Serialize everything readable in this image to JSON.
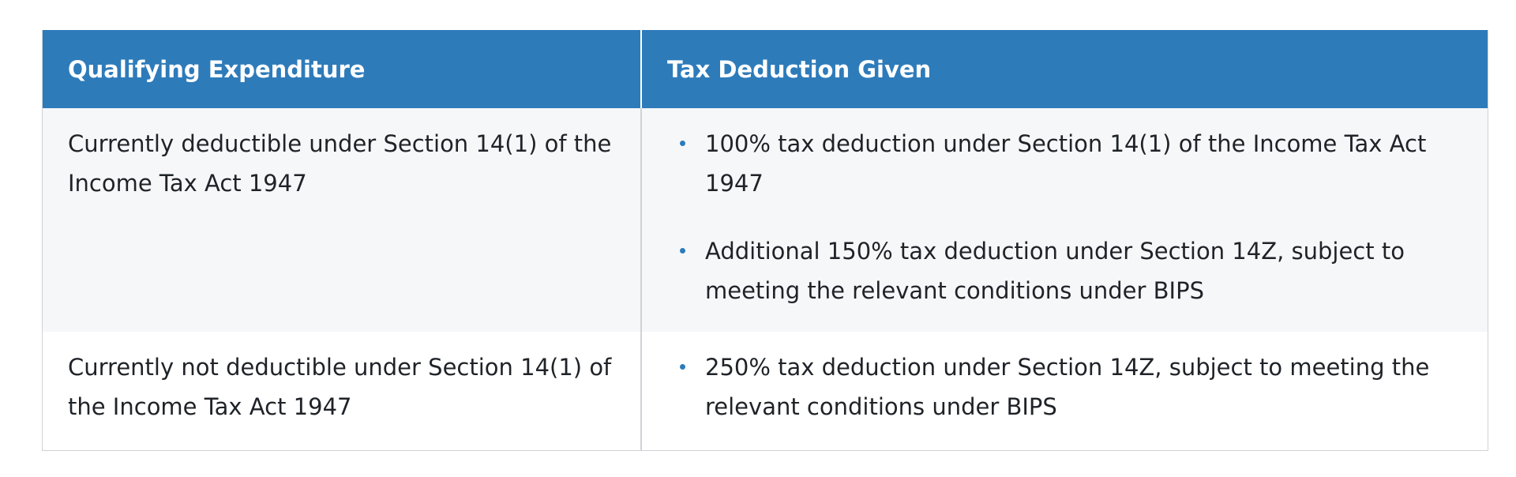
{
  "table": {
    "headers": [
      "Qualifying Expenditure",
      "Tax Deduction Given"
    ],
    "rows": [
      {
        "expenditure": "Currently deductible under Section 14(1) of the Income Tax Act 1947",
        "deductions": [
          "100% tax deduction under Section 14(1) of the Income Tax Act 1947",
          "Additional 150% tax deduction under Section 14Z, subject to meeting the relevant conditions under BIPS"
        ]
      },
      {
        "expenditure": "Currently not deductible under Section 14(1) of the Income Tax Act 1947",
        "deductions": [
          "250% tax deduction under Section 14Z, subject to meeting the relevant conditions under BIPS"
        ]
      }
    ]
  },
  "colors": {
    "header_bg": "#2e7bba",
    "header_text": "#ffffff",
    "bullet": "#2e7bba",
    "row_alt_bg": "#f6f7f9",
    "border": "#cfd3d7"
  }
}
